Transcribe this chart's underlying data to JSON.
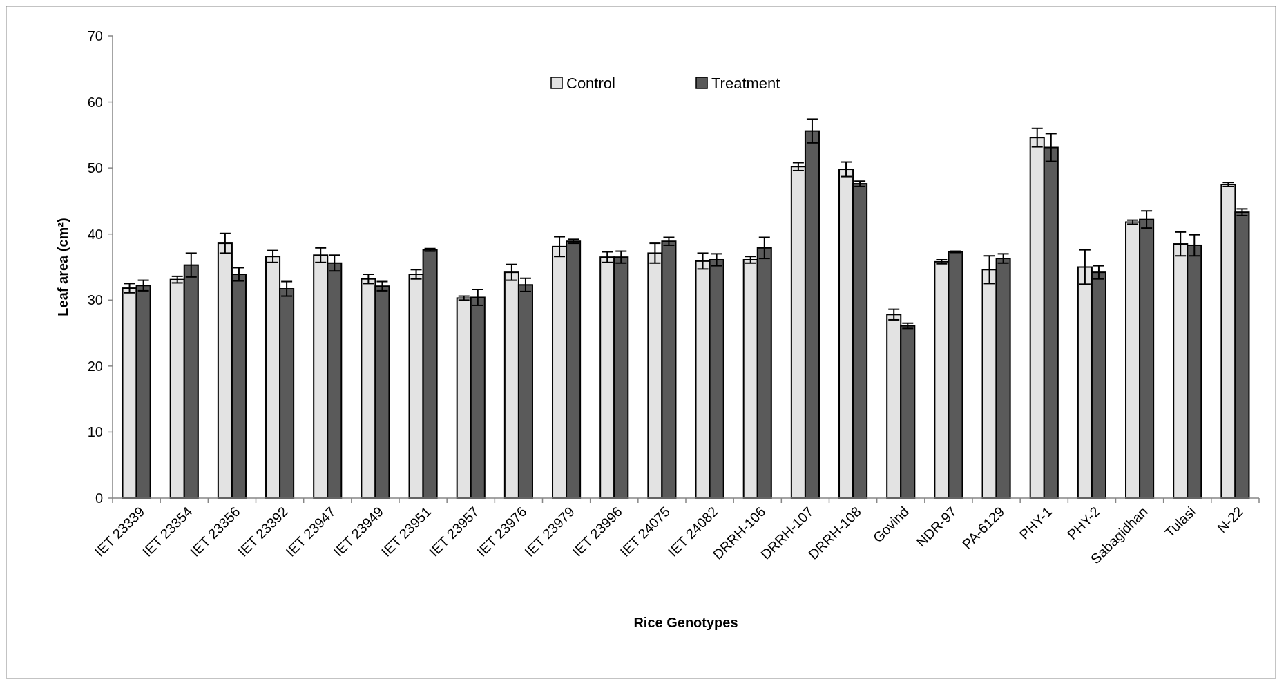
{
  "chart_data": {
    "type": "bar",
    "xlabel": "Rice Genotypes",
    "ylabel": "Leaf area (cm²)",
    "categories": [
      "IET 23339",
      "IET 23354",
      "IET 23356",
      "IET 23392",
      "IET 23947",
      "IET 23949",
      "IET 23951",
      "IET 23957",
      "IET 23976",
      "IET 23979",
      "IET 23996",
      "IET 24075",
      "IET 24082",
      "DRRH-106",
      "DRRH-107",
      "DRRH-108",
      "Govind",
      "NDR-97",
      "PA-6129",
      "PHY-1",
      "PHY-2",
      "Sabagidhan",
      "Tulasi",
      "N-22"
    ],
    "series": [
      {
        "name": "Control",
        "color": "#e3e3e3",
        "values": [
          31.8,
          33.1,
          38.6,
          36.6,
          36.8,
          33.2,
          33.9,
          30.3,
          34.2,
          38.1,
          36.5,
          37.1,
          35.9,
          36.1,
          50.2,
          49.8,
          27.8,
          35.8,
          34.6,
          54.6,
          35.0,
          41.8,
          38.5,
          47.5
        ],
        "errors": [
          0.7,
          0.5,
          1.5,
          0.9,
          1.1,
          0.7,
          0.7,
          0.3,
          1.2,
          1.5,
          0.8,
          1.5,
          1.2,
          0.5,
          0.6,
          1.1,
          0.8,
          0.3,
          2.1,
          1.4,
          2.6,
          0.3,
          1.8,
          0.3
        ]
      },
      {
        "name": "Treatment",
        "color": "#5a5a5a",
        "values": [
          32.2,
          35.3,
          33.9,
          31.7,
          35.6,
          32.1,
          37.6,
          30.4,
          32.3,
          38.9,
          36.5,
          38.9,
          36.1,
          37.9,
          55.6,
          47.6,
          26.1,
          37.3,
          36.3,
          53.1,
          34.2,
          42.2,
          38.3,
          43.3
        ],
        "errors": [
          0.8,
          1.8,
          1.0,
          1.1,
          1.2,
          0.7,
          0.2,
          1.2,
          1.0,
          0.3,
          0.9,
          0.6,
          0.9,
          1.6,
          1.8,
          0.4,
          0.4,
          0.1,
          0.7,
          2.1,
          1.0,
          1.3,
          1.6,
          0.5
        ]
      }
    ],
    "ylim": [
      0,
      70
    ],
    "yticks": [
      0,
      10,
      20,
      30,
      40,
      50,
      60,
      70
    ],
    "grid": false,
    "legend": "top"
  }
}
